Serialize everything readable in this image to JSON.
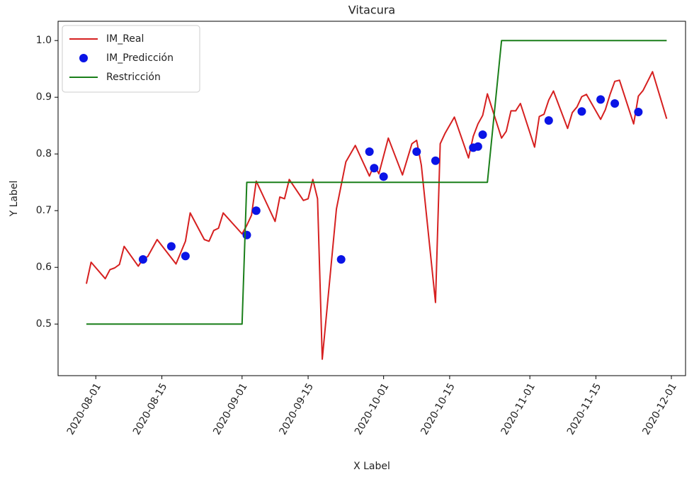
{
  "chart_data": {
    "type": "line",
    "title": "Vitacura",
    "x_label": "X Label",
    "y_label": "Y Label",
    "xlim": [
      "2020-07-24",
      "2020-12-04"
    ],
    "xticks": [
      "2020-08-01",
      "2020-08-15",
      "2020-09-01",
      "2020-09-15",
      "2020-10-01",
      "2020-10-15",
      "2020-11-01",
      "2020-11-15",
      "2020-12-01"
    ],
    "ylim": [
      0.409,
      1.034
    ],
    "yticks": [
      0.5,
      0.6,
      0.7,
      0.8,
      0.9,
      {
        "value": 1,
        "label": "1.0"
      }
    ],
    "legend": "upper left",
    "series": [
      {
        "name": "IM_Real",
        "color": "#d62020",
        "style": "line",
        "x": [
          "2020-07-30",
          "2020-07-31",
          "2020-08-03",
          "2020-08-04",
          "2020-08-05",
          "2020-08-06",
          "2020-08-07",
          "2020-08-10",
          "2020-08-11",
          "2020-08-12",
          "2020-08-14",
          "2020-08-18",
          "2020-08-20",
          "2020-08-21",
          "2020-08-24",
          "2020-08-25",
          "2020-08-26",
          "2020-08-27",
          "2020-08-28",
          "2020-09-01",
          "2020-09-02",
          "2020-09-03",
          "2020-09-04",
          "2020-09-08",
          "2020-09-09",
          "2020-09-10",
          "2020-09-11",
          "2020-09-14",
          "2020-09-15",
          "2020-09-16",
          "2020-09-17",
          "2020-09-18",
          "2020-09-21",
          "2020-09-23",
          "2020-09-25",
          "2020-09-28",
          "2020-09-29",
          "2020-09-30",
          "2020-10-02",
          "2020-10-05",
          "2020-10-07",
          "2020-10-08",
          "2020-10-09",
          "2020-10-12",
          "2020-10-13",
          "2020-10-14",
          "2020-10-16",
          "2020-10-19",
          "2020-10-20",
          "2020-10-21",
          "2020-10-22",
          "2020-10-23",
          "2020-10-26",
          "2020-10-27",
          "2020-10-28",
          "2020-10-29",
          "2020-10-30",
          "2020-11-02",
          "2020-11-03",
          "2020-11-04",
          "2020-11-05",
          "2020-11-06",
          "2020-11-09",
          "2020-11-10",
          "2020-11-11",
          "2020-11-12",
          "2020-11-13",
          "2020-11-16",
          "2020-11-17",
          "2020-11-18",
          "2020-11-19",
          "2020-11-20",
          "2020-11-23",
          "2020-11-24",
          "2020-11-25",
          "2020-11-27",
          "2020-11-30"
        ],
        "values": [
          0.571,
          0.609,
          0.58,
          0.596,
          0.599,
          0.605,
          0.637,
          0.602,
          0.615,
          0.619,
          0.649,
          0.606,
          0.646,
          0.696,
          0.649,
          0.646,
          0.665,
          0.669,
          0.696,
          0.659,
          0.674,
          0.692,
          0.752,
          0.681,
          0.724,
          0.721,
          0.755,
          0.718,
          0.721,
          0.755,
          0.721,
          0.438,
          0.703,
          0.786,
          0.815,
          0.761,
          0.781,
          0.765,
          0.828,
          0.763,
          0.818,
          0.824,
          0.78,
          0.538,
          0.818,
          0.836,
          0.865,
          0.793,
          0.831,
          0.853,
          0.868,
          0.906,
          0.828,
          0.84,
          0.876,
          0.876,
          0.889,
          0.812,
          0.866,
          0.87,
          0.895,
          0.911,
          0.845,
          0.873,
          0.883,
          0.901,
          0.905,
          0.861,
          0.878,
          0.905,
          0.928,
          0.93,
          0.853,
          0.902,
          0.912,
          0.945,
          0.862
        ]
      },
      {
        "name": "IM_Predicción",
        "color": "#0a14e6",
        "style": "marker",
        "x": [
          "2020-08-11",
          "2020-08-17",
          "2020-08-20",
          "2020-09-02",
          "2020-09-04",
          "2020-09-22",
          "2020-09-28",
          "2020-09-29",
          "2020-10-01",
          "2020-10-08",
          "2020-10-12",
          "2020-10-20",
          "2020-10-21",
          "2020-10-22",
          "2020-11-05",
          "2020-11-12",
          "2020-11-16",
          "2020-11-19",
          "2020-11-24"
        ],
        "values": [
          0.614,
          0.637,
          0.62,
          0.657,
          0.7,
          0.614,
          0.804,
          0.775,
          0.76,
          0.804,
          0.788,
          0.811,
          0.813,
          0.834,
          0.859,
          0.875,
          0.896,
          0.889,
          0.874
        ]
      },
      {
        "name": "Restricción",
        "color": "#1a7f1a",
        "style": "line",
        "x": [
          "2020-07-30",
          "2020-09-01",
          "2020-09-02",
          "2020-10-23",
          "2020-10-26",
          "2020-11-30"
        ],
        "values": [
          0.5,
          0.5,
          0.75,
          0.75,
          1,
          1
        ]
      }
    ]
  }
}
